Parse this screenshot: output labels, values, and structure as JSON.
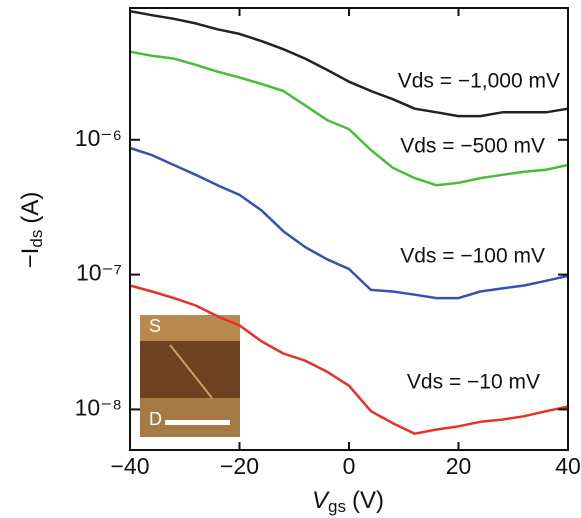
{
  "chart_data": {
    "type": "line",
    "x_label": [
      "V",
      "gs",
      "(V)"
    ],
    "y_label": [
      "−I",
      "ds",
      "(A)"
    ],
    "yscale": "log",
    "xlim": [
      -40,
      40
    ],
    "ylim": [
      5e-09,
      9.5e-06
    ],
    "xticks": [
      {
        "value": -40,
        "label": "−40"
      },
      {
        "value": -20,
        "label": "−20"
      },
      0,
      20,
      40
    ],
    "yticks": [
      {
        "value": 1e-08,
        "label": "10⁻⁸"
      },
      {
        "value": 1e-07,
        "label": "10⁻⁷"
      },
      {
        "value": 1e-06,
        "label": "10⁻⁶"
      }
    ],
    "x": [
      -40,
      -36,
      -32,
      -28,
      -24,
      -20,
      -16,
      -12,
      -8,
      -4,
      0,
      4,
      8,
      12,
      16,
      20,
      24,
      28,
      32,
      36,
      40
    ],
    "series": [
      {
        "name": "Vds = −1,000 mV",
        "color": "#222222",
        "values": [
          9e-06,
          8.4e-06,
          7.9e-06,
          7.3e-06,
          6.6e-06,
          6.1e-06,
          5.4e-06,
          4.7e-06,
          4e-06,
          3.3e-06,
          2.7e-06,
          2.3e-06,
          2e-06,
          1.7e-06,
          1.6e-06,
          1.5e-06,
          1.5e-06,
          1.6e-06,
          1.6e-06,
          1.6e-06,
          1.7e-06
        ]
      },
      {
        "name": "Vds = −500 mV",
        "color": "#4cbb3c",
        "values": [
          4.5e-06,
          4.2e-06,
          4e-06,
          3.6e-06,
          3.2e-06,
          2.9e-06,
          2.6e-06,
          2.3e-06,
          1.8e-06,
          1.4e-06,
          1.2e-06,
          8.4e-07,
          6.2e-07,
          5.2e-07,
          4.6e-07,
          4.8e-07,
          5.2e-07,
          5.5e-07,
          5.8e-07,
          6e-07,
          6.5e-07
        ]
      },
      {
        "name": "Vds = −100 mV",
        "color": "#3a4fb0",
        "values": [
          8.7e-07,
          7.7e-07,
          6.5e-07,
          5.5e-07,
          4.6e-07,
          3.9e-07,
          3e-07,
          2.1e-07,
          1.6e-07,
          1.3e-07,
          1.1e-07,
          7.7e-08,
          7.5e-08,
          7.1e-08,
          6.7e-08,
          6.7e-08,
          7.5e-08,
          7.9e-08,
          8.3e-08,
          9e-08,
          9.8e-08
        ]
      },
      {
        "name": "Vds = −10 mV",
        "color": "#e8302a",
        "values": [
          8.3e-08,
          7.5e-08,
          6.7e-08,
          5.9e-08,
          4.9e-08,
          4.2e-08,
          3.2e-08,
          2.6e-08,
          2.3e-08,
          1.9e-08,
          1.5e-08,
          9.7e-09,
          7.9e-09,
          6.6e-09,
          7.1e-09,
          7.5e-09,
          8.1e-09,
          8.4e-09,
          8.9e-09,
          9.7e-09,
          1.05e-08
        ]
      }
    ],
    "inset_labels": [
      "S",
      "D"
    ]
  }
}
